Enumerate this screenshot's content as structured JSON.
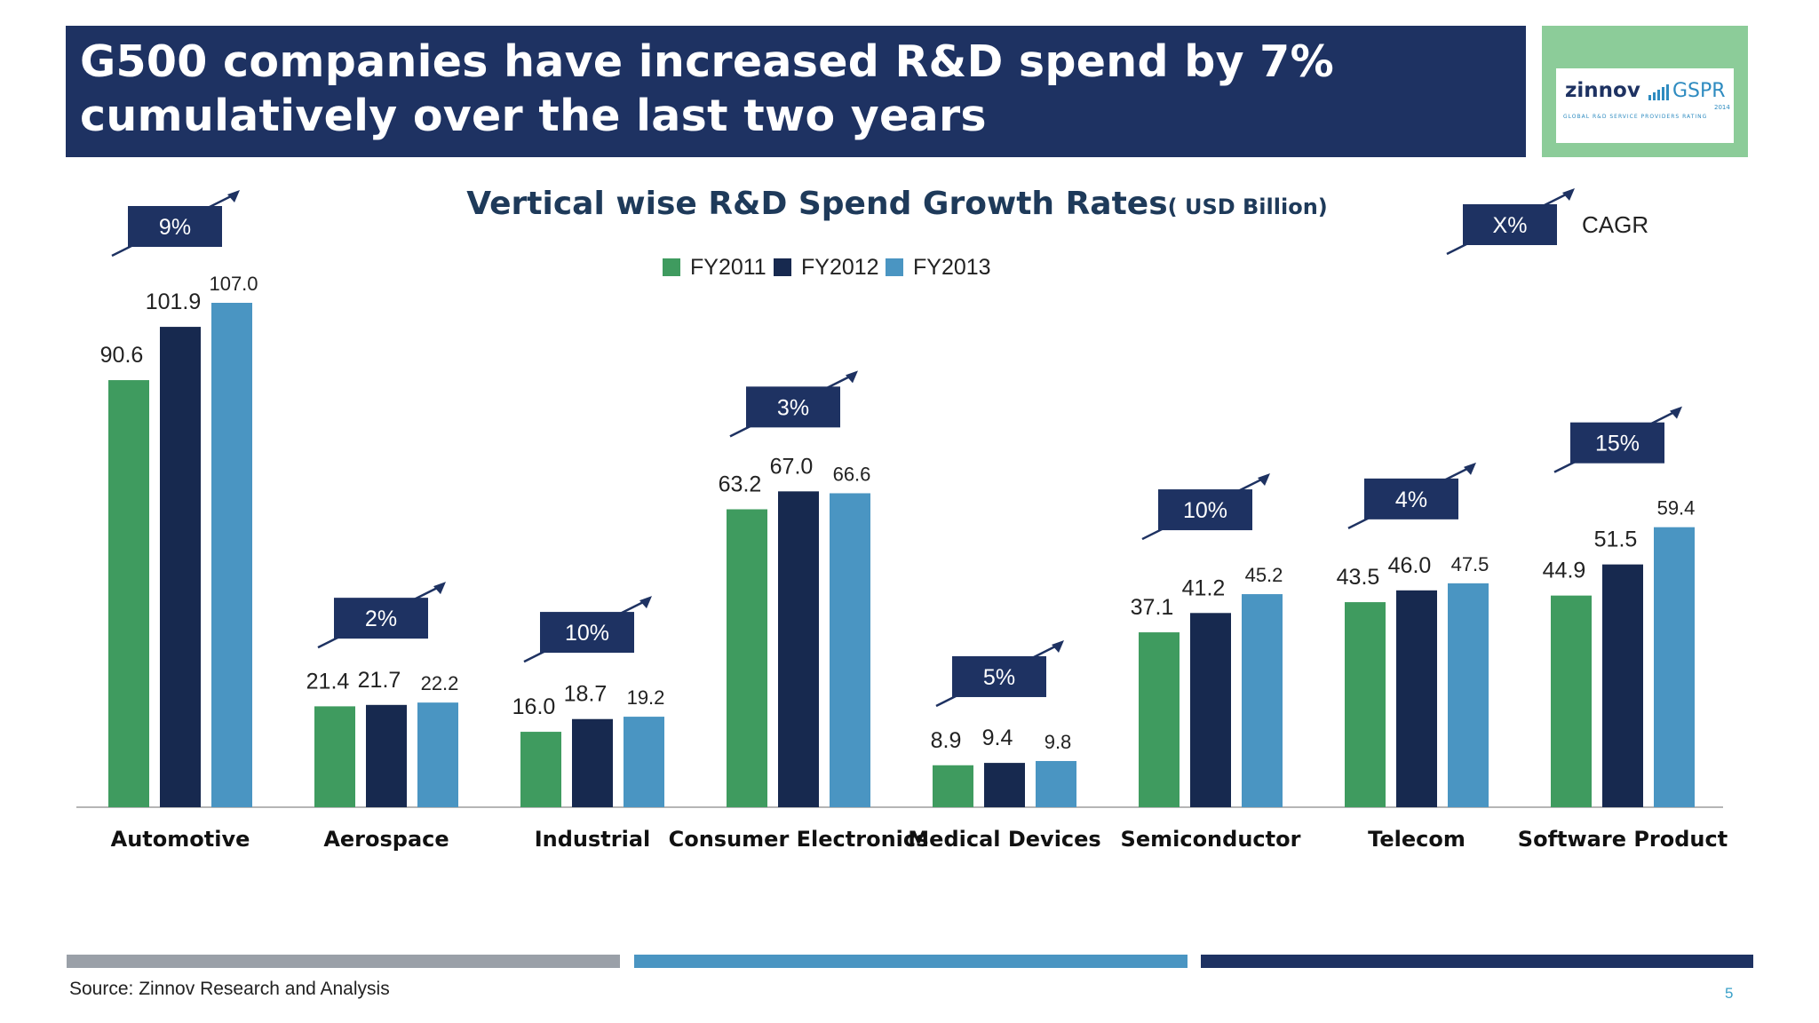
{
  "slide": {
    "title": "G500 companies have increased R&D spend by 7% cumulatively over the last two years",
    "source": "Source: Zinnov Research and Analysis",
    "page_number": "5"
  },
  "logo": {
    "brand": "zinnov",
    "product": "GSPR",
    "year": "2014",
    "tagline": "GLOBAL R&D SERVICE PROVIDERS RATING"
  },
  "colors": {
    "title_bg": "#1e3262",
    "logo_bg": "#8ccc99",
    "fy2011": "#3f9b5f",
    "fy2012": "#17294f",
    "fy2013": "#4a95c2",
    "arrow_box": "#1e3262",
    "bottom_bars": [
      "#9aa0a8",
      "#4a95c2",
      "#1e3262"
    ]
  },
  "chart_data": {
    "type": "bar",
    "title": "Vertical wise R&D Spend Growth Rates",
    "title_unit": "( USD Billion)",
    "categories": [
      "Automotive",
      "Aerospace",
      "Industrial",
      "Consumer Electronics",
      "Medical Devices",
      "Semiconductor",
      "Telecom",
      "Software Product"
    ],
    "series": [
      {
        "name": "FY2011",
        "values": [
          90.6,
          21.4,
          16.0,
          63.2,
          8.9,
          37.1,
          43.5,
          44.9
        ]
      },
      {
        "name": "FY2012",
        "values": [
          101.9,
          21.7,
          18.7,
          67.0,
          9.4,
          41.2,
          46.0,
          51.5
        ]
      },
      {
        "name": "FY2013",
        "values": [
          107.0,
          22.2,
          19.2,
          66.6,
          9.8,
          45.2,
          47.5,
          59.4
        ]
      }
    ],
    "cagr": [
      "9%",
      "2%",
      "10%",
      "3%",
      "5%",
      "10%",
      "4%",
      "15%"
    ],
    "cagr_legend": {
      "symbol": "X%",
      "label": "CAGR"
    },
    "ylim": [
      0,
      107
    ],
    "legend_position": "top-center",
    "grid": false
  }
}
